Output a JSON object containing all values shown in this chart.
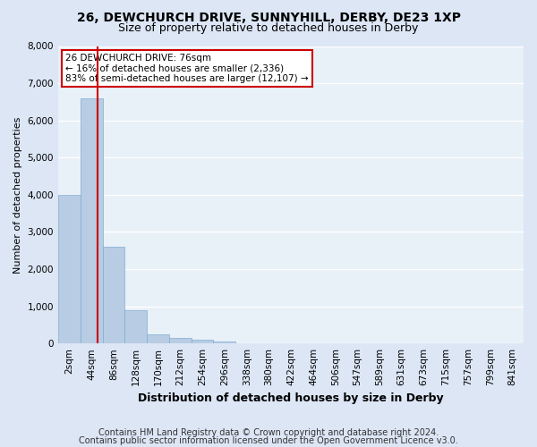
{
  "title1": "26, DEWCHURCH DRIVE, SUNNYHILL, DERBY, DE23 1XP",
  "title2": "Size of property relative to detached houses in Derby",
  "xlabel": "Distribution of detached houses by size in Derby",
  "ylabel": "Number of detached properties",
  "footnote1": "Contains HM Land Registry data © Crown copyright and database right 2024.",
  "footnote2": "Contains public sector information licensed under the Open Government Licence v3.0.",
  "annotation_title": "26 DEWCHURCH DRIVE: 76sqm",
  "annotation_line2": "← 16% of detached houses are smaller (2,336)",
  "annotation_line3": "83% of semi-detached houses are larger (12,107) →",
  "property_size": 76,
  "bins": [
    2,
    44,
    86,
    128,
    170,
    212,
    254,
    296,
    338,
    380,
    422,
    464,
    506,
    547,
    589,
    631,
    673,
    715,
    757,
    799,
    841
  ],
  "values": [
    4000,
    6600,
    2600,
    900,
    250,
    150,
    100,
    50,
    0,
    0,
    0,
    0,
    0,
    0,
    0,
    0,
    0,
    0,
    0,
    0
  ],
  "bar_color": "#b8cce4",
  "bar_edge_color": "#7faecf",
  "highlight_color": "#cc0000",
  "annotation_box_color": "#ffffff",
  "annotation_box_edge": "#cc0000",
  "bg_color": "#dce6f5",
  "plot_bg_color": "#e8f0f8",
  "grid_color": "#ffffff",
  "ylim": [
    0,
    8000
  ],
  "yticks": [
    0,
    1000,
    2000,
    3000,
    4000,
    5000,
    6000,
    7000,
    8000
  ],
  "title1_fontsize": 10,
  "title2_fontsize": 9,
  "ylabel_fontsize": 8,
  "xlabel_fontsize": 9,
  "tick_fontsize": 7.5,
  "footnote_fontsize": 7
}
